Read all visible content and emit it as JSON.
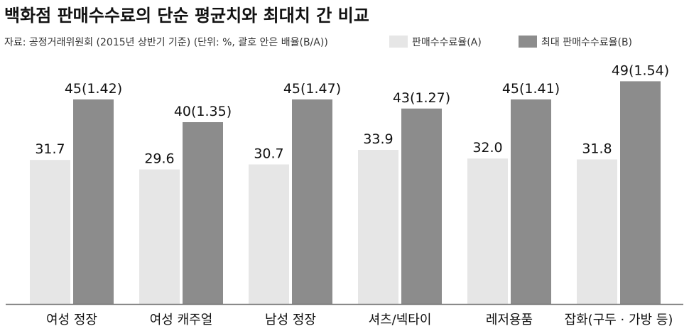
{
  "chart_data": {
    "type": "bar",
    "title": "백화점 판매수수료의 단순 평균치와 최대치 간 비교",
    "subtitle": "자료: 공정거래위원회 (2015년 상반기 기준) (단위: %, 괄호 안은 배율(B/A))",
    "categories": [
      "여성 정장",
      "여성 캐주얼",
      "남성 정장",
      "셔츠/넥타이",
      "레저용품",
      "잡화(구두 · 가방 등)"
    ],
    "series": [
      {
        "name": "판매수수료율(A)",
        "values": [
          31.7,
          29.6,
          30.7,
          33.9,
          32.0,
          31.8
        ],
        "labels": [
          "31.7",
          "29.6",
          "30.7",
          "33.9",
          "32.0",
          "31.8"
        ],
        "color": "#e6e6e6"
      },
      {
        "name": "최대 판매수수료율(B)",
        "values": [
          45,
          40,
          45,
          43,
          45,
          49
        ],
        "labels": [
          "45(1.42)",
          "40(1.35)",
          "45(1.47)",
          "43(1.27)",
          "45(1.41)",
          "49(1.54)"
        ],
        "color": "#8c8c8c"
      }
    ],
    "ylim": [
      0,
      52
    ],
    "xlabel": "",
    "ylabel": "",
    "grid": false,
    "legend_position": "top-right",
    "baseline_color": "#777777"
  }
}
